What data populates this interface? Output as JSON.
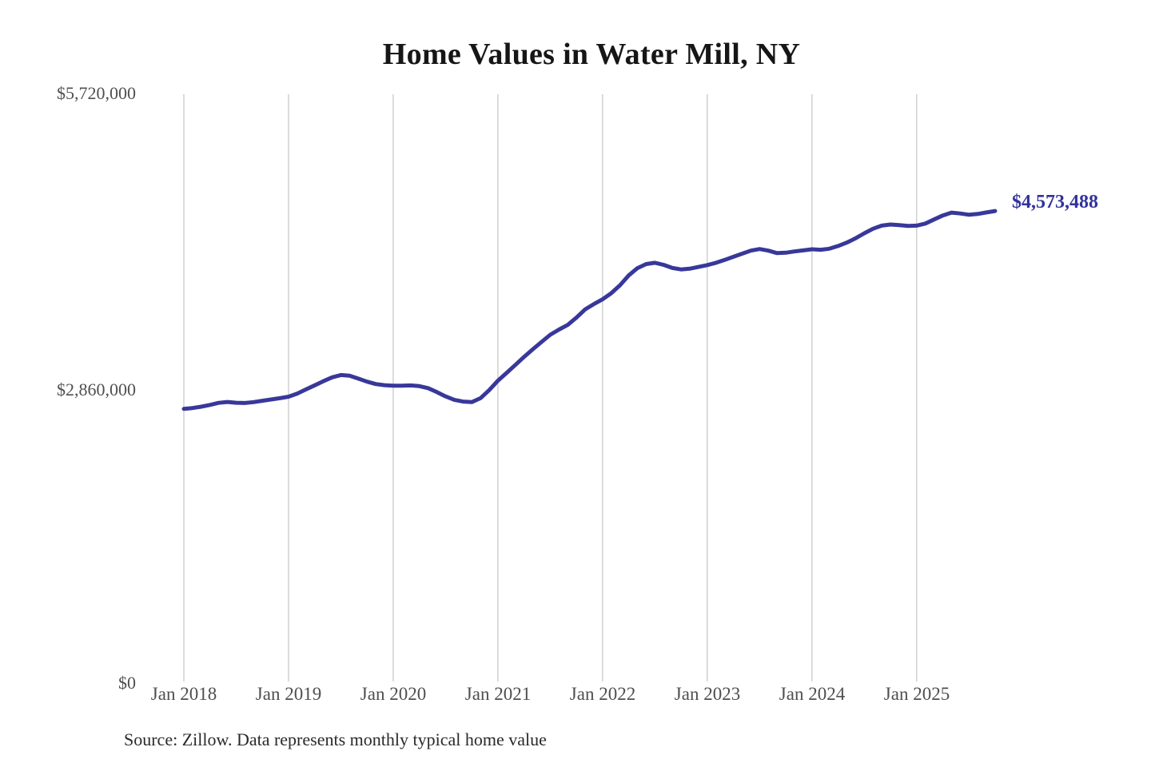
{
  "title": "Home Values in Water Mill, NY",
  "source_note": "Source: Zillow. Data represents monthly typical home value",
  "end_label": "$4,573,488",
  "colors": {
    "line": "#38389a",
    "end_label": "#32329b",
    "grid": "#c9c9c9",
    "axis_text": "#4f4f4f",
    "title_text": "#161616"
  },
  "y_axis": {
    "labels": [
      {
        "text": "$5,720,000",
        "value": 5720000
      },
      {
        "text": "$2,860,000",
        "value": 2860000
      },
      {
        "text": "$0",
        "value": 0
      }
    ]
  },
  "x_axis": {
    "labels": [
      "Jan 2018",
      "Jan 2019",
      "Jan 2020",
      "Jan 2021",
      "Jan 2022",
      "Jan 2023",
      "Jan 2024",
      "Jan 2025"
    ]
  },
  "chart_data": {
    "type": "line",
    "title": "Home Values in Water Mill, NY",
    "x_start": "2018-01",
    "x_end": "2025-10",
    "x_interval": "monthly",
    "months_per_tick": 12,
    "x_tick_labels": [
      "Jan 2018",
      "Jan 2019",
      "Jan 2020",
      "Jan 2021",
      "Jan 2022",
      "Jan 2023",
      "Jan 2024",
      "Jan 2025"
    ],
    "y_tick_labels": [
      "$0",
      "$2,860,000",
      "$5,720,000"
    ],
    "ylim": [
      0,
      5720000
    ],
    "grid": "vertical-only",
    "legend": "none",
    "last_point_value": 4573488,
    "last_point_label": "$4,573,488",
    "series": [
      {
        "name": "Monthly typical home value",
        "values": [
          2657000,
          2665000,
          2678000,
          2695000,
          2715000,
          2724000,
          2716000,
          2714000,
          2722000,
          2735000,
          2748000,
          2760000,
          2775000,
          2805000,
          2845000,
          2885000,
          2925000,
          2962000,
          2985000,
          2978000,
          2950000,
          2920000,
          2897000,
          2886000,
          2881000,
          2882000,
          2884000,
          2877000,
          2858000,
          2820000,
          2778000,
          2745000,
          2728000,
          2722000,
          2760000,
          2838000,
          2930000,
          3005000,
          3082000,
          3160000,
          3235000,
          3305000,
          3375000,
          3425000,
          3470000,
          3540000,
          3620000,
          3672000,
          3718000,
          3778000,
          3855000,
          3950000,
          4020000,
          4060000,
          4072000,
          4052000,
          4022000,
          4008000,
          4015000,
          4032000,
          4050000,
          4072000,
          4100000,
          4130000,
          4160000,
          4190000,
          4205000,
          4190000,
          4166000,
          4170000,
          4182000,
          4192000,
          4203000,
          4198000,
          4208000,
          4235000,
          4268000,
          4310000,
          4358000,
          4402000,
          4432000,
          4443000,
          4437000,
          4430000,
          4432000,
          4452000,
          4492000,
          4530000,
          4558000,
          4550000,
          4537000,
          4545000,
          4560000,
          4573488
        ]
      }
    ]
  }
}
